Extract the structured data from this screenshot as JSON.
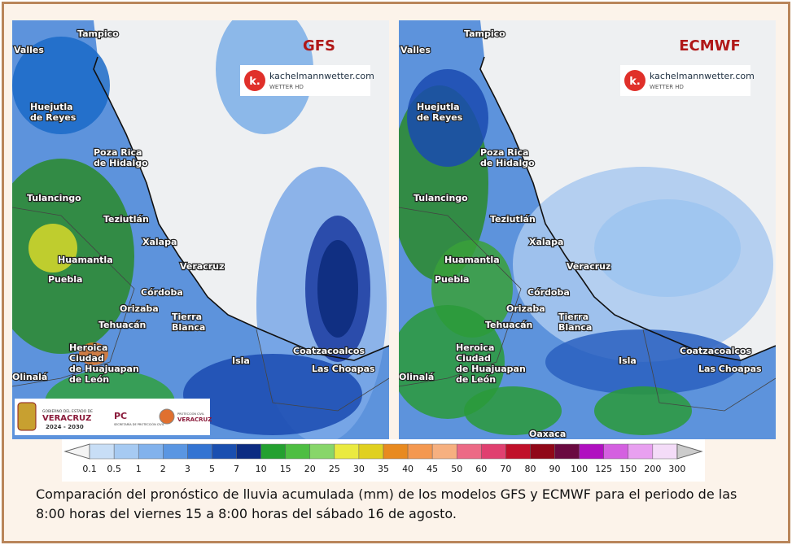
{
  "panels": [
    {
      "title": "GFS",
      "watermark": "kachelmannwetter.com",
      "watermark_sub": "WETTER HD",
      "logo_letter": "k.",
      "cities": [
        {
          "lines": [
            "Tampico"
          ]
        },
        {
          "lines": [
            "Valles"
          ]
        },
        {
          "lines": [
            "Huejutla",
            "de Reyes"
          ]
        },
        {
          "lines": [
            "Poza Rica",
            "de Hidalgo"
          ]
        },
        {
          "lines": [
            "Tulancingo"
          ]
        },
        {
          "lines": [
            "Teziutlán"
          ]
        },
        {
          "lines": [
            "Xalapa"
          ]
        },
        {
          "lines": [
            "Huamantla"
          ]
        },
        {
          "lines": [
            "Veracruz"
          ]
        },
        {
          "lines": [
            "Puebla"
          ]
        },
        {
          "lines": [
            "Córdoba"
          ]
        },
        {
          "lines": [
            "Orizaba"
          ]
        },
        {
          "lines": [
            "Tierra",
            "Blanca"
          ]
        },
        {
          "lines": [
            "Tehuacán"
          ]
        },
        {
          "lines": [
            "Heroica",
            "Ciudad",
            "de Huajuapan",
            "de León"
          ]
        },
        {
          "lines": [
            "Isla"
          ]
        },
        {
          "lines": [
            "Coatzacoalcos"
          ]
        },
        {
          "lines": [
            "Las Choapas"
          ]
        },
        {
          "lines": [
            "Olinalá"
          ]
        }
      ]
    },
    {
      "title": "ECMWF",
      "watermark": "kachelmannwetter.com",
      "watermark_sub": "WETTER HD",
      "logo_letter": "k.",
      "cities": [
        {
          "lines": [
            "Tampico"
          ]
        },
        {
          "lines": [
            "Valles"
          ]
        },
        {
          "lines": [
            "Huejutla",
            "de Reyes"
          ]
        },
        {
          "lines": [
            "Poza Rica",
            "de Hidalgo"
          ]
        },
        {
          "lines": [
            "Tulancingo"
          ]
        },
        {
          "lines": [
            "Teziutlán"
          ]
        },
        {
          "lines": [
            "Xalapa"
          ]
        },
        {
          "lines": [
            "Huamantla"
          ]
        },
        {
          "lines": [
            "Veracruz"
          ]
        },
        {
          "lines": [
            "Puebla"
          ]
        },
        {
          "lines": [
            "Córdoba"
          ]
        },
        {
          "lines": [
            "Orizaba"
          ]
        },
        {
          "lines": [
            "Tierra",
            "Blanca"
          ]
        },
        {
          "lines": [
            "Tehuacán"
          ]
        },
        {
          "lines": [
            "Heroica",
            "Ciudad",
            "de Huajuapan",
            "de León"
          ]
        },
        {
          "lines": [
            "Isla"
          ]
        },
        {
          "lines": [
            "Coatzacoalcos"
          ]
        },
        {
          "lines": [
            "Las Choapas"
          ]
        },
        {
          "lines": [
            "Olinalá"
          ]
        },
        {
          "lines": [
            "Oaxaca"
          ]
        }
      ]
    }
  ],
  "logos": {
    "gov_small": "GOBIERNO DEL ESTADO DE",
    "gov_big": "VERACRUZ",
    "gov_years": "2024 - 2030",
    "pc": "PC",
    "pc_sub": "SECRETARÍA DE PROTECCIÓN CIVIL",
    "pc2_sub": "PROTECCIÓN CIVIL",
    "pc2_big": "VERACRUZ"
  },
  "legend": {
    "labels": [
      "0.1",
      "0.5",
      "1",
      "2",
      "3",
      "5",
      "7",
      "10",
      "15",
      "20",
      "25",
      "30",
      "35",
      "40",
      "45",
      "50",
      "60",
      "70",
      "80",
      "90",
      "100",
      "125",
      "150",
      "200",
      "300"
    ],
    "colors": [
      "#f4f4f4",
      "#c8def6",
      "#a6caf2",
      "#82b2ec",
      "#5a96e2",
      "#3474d2",
      "#1a4fb0",
      "#0c2c82",
      "#24a030",
      "#4ebe42",
      "#88d66a",
      "#eaea40",
      "#e0d020",
      "#e88a20",
      "#f49850",
      "#f6b080",
      "#ec6a86",
      "#e04070",
      "#c0102a",
      "#900818",
      "#6a0a40",
      "#b010c0",
      "#d460e0",
      "#e8a0f0",
      "#f4dcf8",
      "#cccccc"
    ]
  },
  "caption": "Comparación del pronóstico de lluvia acumulada (mm) de los modelos GFS y ECMWF para el periodo de las 8:00 horas del viernes 15 a 8:00 horas del sábado 16 de agosto."
}
